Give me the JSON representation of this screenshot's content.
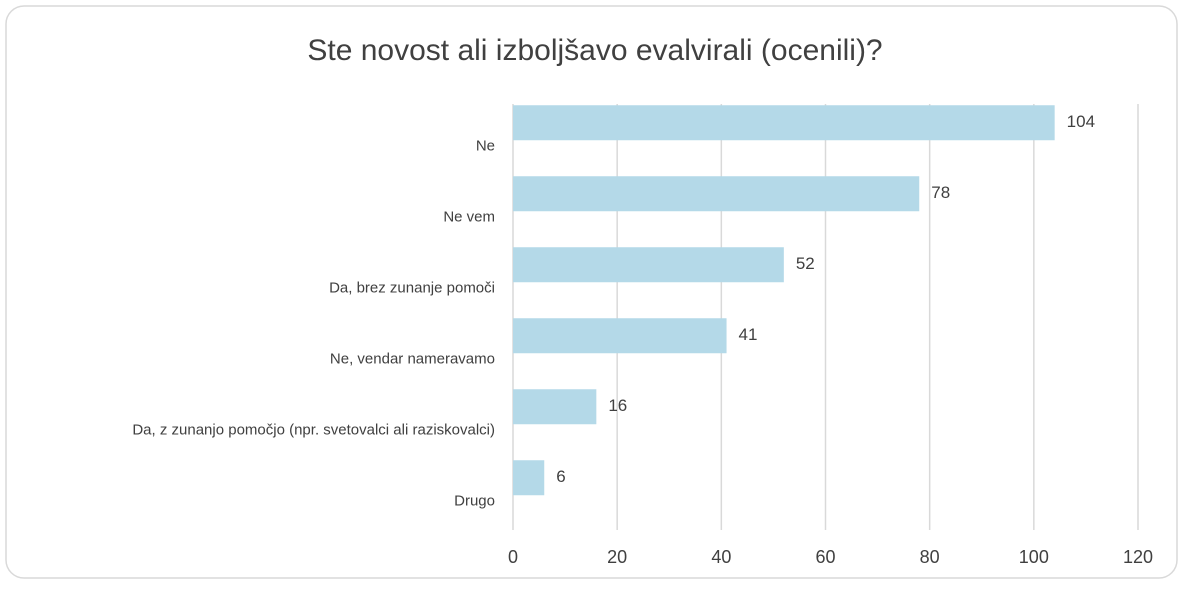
{
  "chart_data": {
    "type": "bar",
    "orientation": "horizontal",
    "title": "Ste novost ali izboljšavo evalvirali (ocenili)?",
    "categories": [
      "Ne",
      "Ne vem",
      "Da, brez zunanje pomoči",
      "Ne, vendar nameravamo",
      "Da, z zunanjo pomočjo (npr. svetovalci ali raziskovalci)",
      "Drugo"
    ],
    "values": [
      104,
      78,
      52,
      41,
      16,
      6
    ],
    "color": "#b4d9e8",
    "xlim": [
      0,
      120
    ],
    "xticks": [
      0,
      20,
      40,
      60,
      80,
      100,
      120
    ],
    "grid": true
  }
}
